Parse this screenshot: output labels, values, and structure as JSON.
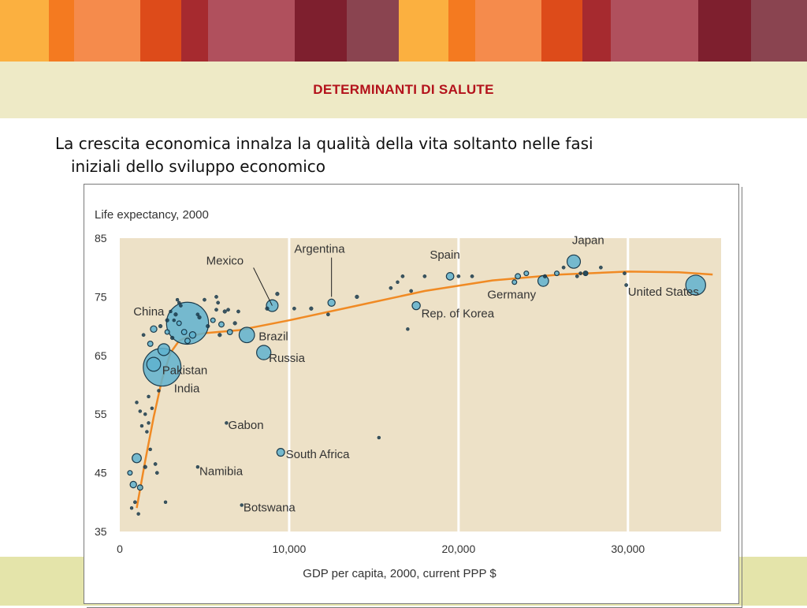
{
  "slide": {
    "title": "DETERMINANTI DI SALUTE",
    "bullet_line1": "La crescita economica innalza la qualità della vita soltanto nelle fasi",
    "bullet_line2": "iniziali dello sviluppo economico"
  },
  "colors": {
    "stripes": [
      "#fbb040",
      "#f47a20",
      "#f58b4c",
      "#dd4b1a",
      "#a62a2f",
      "#b0505d",
      "#7e1f2e",
      "#8a4450",
      "#fbb040",
      "#f47a20",
      "#f58b4c",
      "#dd4b1a",
      "#a62a2f",
      "#b0505d",
      "#7e1f2e",
      "#8a4450"
    ],
    "title_band": "#eeeac6",
    "title_text": "#b3121b",
    "plot_bg": "#ede1c7",
    "bubble_fill": "#5fb1cf",
    "bubble_stroke": "#1b3b4c",
    "trend": "#f08a24"
  },
  "chart_data": {
    "type": "scatter",
    "title": "Life expectancy, 2000",
    "xlabel": "GDP per capita, 2000, current PPP $",
    "ylabel": "Life expectancy, 2000",
    "xlim": [
      0,
      35500
    ],
    "ylim": [
      35,
      85
    ],
    "xticks": [
      0,
      10000,
      20000,
      30000
    ],
    "xtick_labels": [
      "0",
      "10,000",
      "20,000",
      "30,000"
    ],
    "yticks": [
      35,
      45,
      55,
      65,
      75,
      85
    ],
    "ytick_labels": [
      "35",
      "45",
      "55",
      "65",
      "75",
      "85"
    ],
    "grid_x": [
      10000,
      20000,
      30000
    ],
    "countries": [
      {
        "name": "China",
        "x": 4000,
        "y": 70.5,
        "size": 1262
      },
      {
        "name": "India",
        "x": 2500,
        "y": 63,
        "size": 1016
      },
      {
        "name": "Pakistan",
        "x": 2000,
        "y": 63.5,
        "size": 138
      },
      {
        "name": "Mexico",
        "x": 9000,
        "y": 73.5,
        "size": 98
      },
      {
        "name": "Argentina",
        "x": 12500,
        "y": 74,
        "size": 37
      },
      {
        "name": "Spain",
        "x": 19500,
        "y": 78.5,
        "size": 40
      },
      {
        "name": "Japan",
        "x": 26800,
        "y": 81,
        "size": 127
      },
      {
        "name": "Germany",
        "x": 25000,
        "y": 77.7,
        "size": 82
      },
      {
        "name": "Rep. of Korea",
        "x": 17500,
        "y": 73.5,
        "size": 47
      },
      {
        "name": "United States",
        "x": 34000,
        "y": 77,
        "size": 282
      },
      {
        "name": "Brazil",
        "x": 7500,
        "y": 68.5,
        "size": 170
      },
      {
        "name": "Russia",
        "x": 8500,
        "y": 65.5,
        "size": 146
      },
      {
        "name": "South Africa",
        "x": 9500,
        "y": 48.5,
        "size": 43
      },
      {
        "name": "Gabon",
        "x": 6300,
        "y": 53.5,
        "size": 1
      },
      {
        "name": "Namibia",
        "x": 4600,
        "y": 46,
        "size": 2
      },
      {
        "name": "Botswana",
        "x": 7200,
        "y": 39.5,
        "size": 2
      }
    ],
    "other_points": [
      [
        1000,
        47.5,
        60
      ],
      [
        800,
        43,
        30
      ],
      [
        1200,
        42.5,
        20
      ],
      [
        600,
        45,
        15
      ],
      [
        1500,
        46,
        10
      ],
      [
        900,
        40,
        8
      ],
      [
        700,
        39,
        5
      ],
      [
        1100,
        38,
        5
      ],
      [
        2700,
        40,
        5
      ],
      [
        2100,
        46.5,
        8
      ],
      [
        2200,
        45,
        8
      ],
      [
        1800,
        49,
        5
      ],
      [
        1600,
        52,
        5
      ],
      [
        1300,
        53,
        5
      ],
      [
        1700,
        53.5,
        5
      ],
      [
        1500,
        55,
        5
      ],
      [
        1200,
        55.5,
        5
      ],
      [
        1900,
        56,
        5
      ],
      [
        1700,
        58,
        5
      ],
      [
        1000,
        57,
        5
      ],
      [
        2300,
        59,
        5
      ],
      [
        2600,
        66,
        100
      ],
      [
        1800,
        67,
        20
      ],
      [
        2000,
        69.5,
        30
      ],
      [
        2800,
        69,
        15
      ],
      [
        3100,
        68,
        10
      ],
      [
        3500,
        70.5,
        15
      ],
      [
        3300,
        72,
        10
      ],
      [
        3600,
        73.5,
        8
      ],
      [
        4700,
        71.5,
        10
      ],
      [
        5200,
        70,
        10
      ],
      [
        5500,
        71,
        15
      ],
      [
        6000,
        70.3,
        20
      ],
      [
        6500,
        69,
        20
      ],
      [
        6800,
        70.5,
        10
      ],
      [
        5900,
        68.5,
        10
      ],
      [
        6200,
        72.5,
        10
      ],
      [
        5800,
        74,
        8
      ],
      [
        5700,
        72.8,
        8
      ],
      [
        6400,
        72.8,
        8
      ],
      [
        5700,
        75,
        8
      ],
      [
        5000,
        74.5,
        8
      ],
      [
        7000,
        72.5,
        8
      ],
      [
        8700,
        73,
        10
      ],
      [
        9300,
        75.5,
        10
      ],
      [
        10300,
        73,
        8
      ],
      [
        11300,
        73,
        10
      ],
      [
        12300,
        72,
        8
      ],
      [
        14000,
        75,
        10
      ],
      [
        16000,
        76.5,
        8
      ],
      [
        17200,
        76,
        8
      ],
      [
        16700,
        78.5,
        8
      ],
      [
        18000,
        78.5,
        8
      ],
      [
        20000,
        78.5,
        8
      ],
      [
        20800,
        78.5,
        8
      ],
      [
        23300,
        77.5,
        15
      ],
      [
        24000,
        79,
        15
      ],
      [
        23500,
        78.5,
        20
      ],
      [
        25100,
        78.5,
        10
      ],
      [
        25800,
        79,
        15
      ],
      [
        26200,
        80,
        8
      ],
      [
        27500,
        79,
        15
      ],
      [
        28400,
        80,
        8
      ],
      [
        29800,
        79,
        8
      ],
      [
        29900,
        77,
        8
      ],
      [
        27200,
        79,
        8
      ],
      [
        27500,
        79,
        8
      ],
      [
        27000,
        78.5,
        8
      ],
      [
        4300,
        68.5,
        30
      ],
      [
        4000,
        67.5,
        20
      ],
      [
        3800,
        69,
        20
      ],
      [
        2800,
        71,
        10
      ],
      [
        2400,
        70,
        10
      ],
      [
        1400,
        68.5,
        8
      ],
      [
        15300,
        51,
        3
      ],
      [
        17000,
        69.5,
        3
      ],
      [
        16400,
        77.5,
        3
      ],
      [
        3500,
        74,
        5
      ],
      [
        3200,
        71,
        5
      ],
      [
        3000,
        72.5,
        5
      ],
      [
        3400,
        74.5,
        5
      ],
      [
        4600,
        72,
        8
      ]
    ],
    "trend": [
      [
        1000,
        39
      ],
      [
        1500,
        47
      ],
      [
        2000,
        54.5
      ],
      [
        2500,
        61
      ],
      [
        3000,
        65.5
      ],
      [
        3500,
        67.5
      ],
      [
        4000,
        68.2
      ],
      [
        5000,
        68.8
      ],
      [
        7000,
        69.3
      ],
      [
        10000,
        71
      ],
      [
        14000,
        73.5
      ],
      [
        18000,
        76
      ],
      [
        22000,
        77.8
      ],
      [
        26000,
        78.8
      ],
      [
        30000,
        79.3
      ],
      [
        33000,
        79.2
      ],
      [
        35000,
        78.8
      ]
    ],
    "annotations": [
      {
        "text": "Mexico",
        "x": 5100,
        "y": 80.5,
        "anchor": "start",
        "line_to": [
          9000,
          73.5
        ]
      },
      {
        "text": "Argentina",
        "x": 10300,
        "y": 82.5,
        "anchor": "start",
        "line_to": [
          12500,
          75
        ]
      },
      {
        "text": "Spain",
        "x": 18300,
        "y": 81.5,
        "anchor": "start"
      },
      {
        "text": "Japan",
        "x": 26700,
        "y": 84,
        "anchor": "start"
      },
      {
        "text": "Germany",
        "x": 21700,
        "y": 74.7,
        "anchor": "start"
      },
      {
        "text": "Rep. of Korea",
        "x": 17800,
        "y": 71.5,
        "anchor": "start"
      },
      {
        "text": "United States",
        "x": 30000,
        "y": 75.2,
        "anchor": "start"
      },
      {
        "text": "China",
        "x": 800,
        "y": 71.8,
        "anchor": "start"
      },
      {
        "text": "Brazil",
        "x": 8200,
        "y": 67.6,
        "anchor": "start"
      },
      {
        "text": "Russia",
        "x": 8800,
        "y": 63.9,
        "anchor": "start"
      },
      {
        "text": "Pakistan",
        "x": 2500,
        "y": 61.8,
        "anchor": "start"
      },
      {
        "text": "India",
        "x": 3200,
        "y": 58.7,
        "anchor": "start"
      },
      {
        "text": "Gabon",
        "x": 6400,
        "y": 52.5,
        "anchor": "start"
      },
      {
        "text": "South Africa",
        "x": 9800,
        "y": 47.5,
        "anchor": "start"
      },
      {
        "text": "Namibia",
        "x": 4700,
        "y": 44.6,
        "anchor": "start"
      },
      {
        "text": "Botswana",
        "x": 7300,
        "y": 38.4,
        "anchor": "start"
      }
    ]
  }
}
